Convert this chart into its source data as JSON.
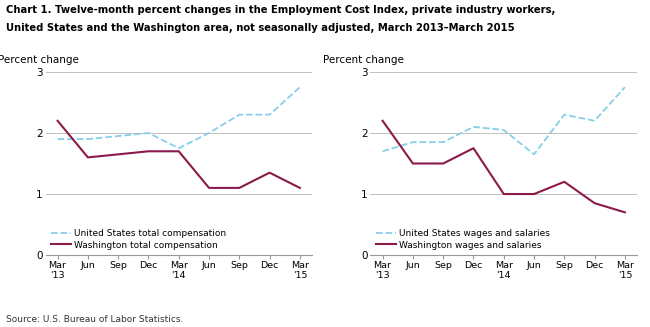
{
  "title_line1": "Chart 1. Twelve-month percent changes in the Employment Cost Index, private industry workers,",
  "title_line2": "United States and the Washington area, not seasonally adjusted, March 2013–March 2015",
  "source": "Source: U.S. Bureau of Labor Statistics.",
  "ylabel": "Percent change",
  "ylim": [
    0.0,
    3.0
  ],
  "yticks": [
    0.0,
    1.0,
    2.0,
    3.0
  ],
  "left_us": [
    1.9,
    1.9,
    1.95,
    2.0,
    1.75,
    2.0,
    2.3,
    2.3,
    2.75
  ],
  "left_wa": [
    2.2,
    1.6,
    1.65,
    1.7,
    1.7,
    1.1,
    1.1,
    1.35,
    1.1
  ],
  "left_legend1": "United States total compensation",
  "left_legend2": "Washington total compensation",
  "right_us": [
    1.7,
    1.85,
    1.85,
    2.1,
    2.05,
    1.65,
    2.3,
    2.2,
    2.75
  ],
  "right_wa": [
    2.2,
    1.5,
    1.5,
    1.75,
    1.0,
    1.0,
    1.2,
    0.85,
    0.7
  ],
  "right_legend1": "United States wages and salaries",
  "right_legend2": "Washington wages and salaries",
  "us_color": "#87CEEB",
  "wa_color": "#8B1A4A",
  "us_linewidth": 1.3,
  "wa_linewidth": 1.5,
  "grid_color": "#c0c0c0",
  "background_color": "#ffffff"
}
